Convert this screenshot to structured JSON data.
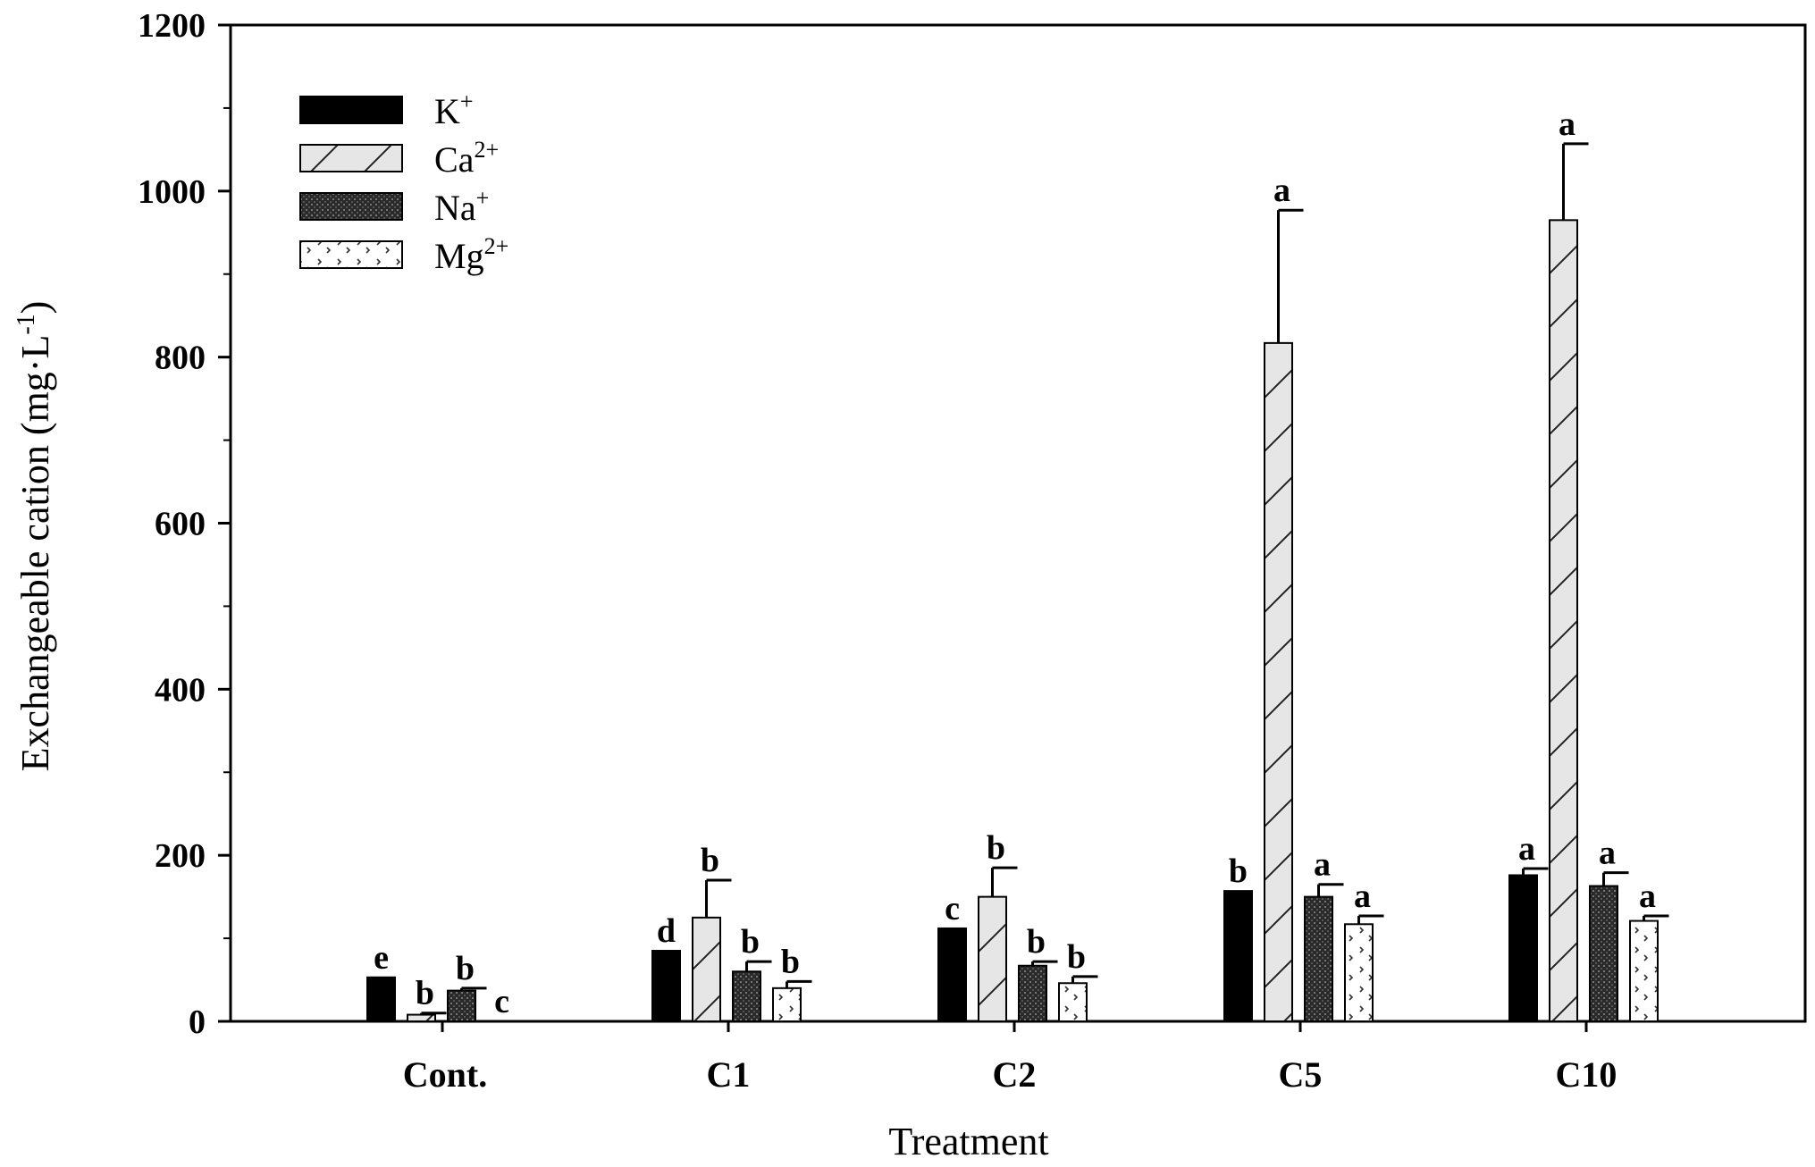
{
  "chart_data": {
    "type": "bar",
    "xlabel": "Treatment",
    "ylabel": "Exchangeable cation (mg·L",
    "ylabel_sup": "-1",
    "ylabel_tail": ")",
    "ylim": [
      0,
      1200
    ],
    "yticks": [
      0,
      200,
      400,
      600,
      800,
      1000,
      1200
    ],
    "categories": [
      "Cont.",
      "C1",
      "C2",
      "C5",
      "C10"
    ],
    "series": [
      {
        "name": "K",
        "sup": "+",
        "pattern": "solid",
        "values": [
          53,
          85,
          112,
          157,
          176
        ],
        "errors": [
          0,
          0,
          0,
          0,
          8
        ],
        "letters": [
          "e",
          "d",
          "c",
          "b",
          "a"
        ]
      },
      {
        "name": "Ca",
        "sup": "2+",
        "pattern": "hatch",
        "values": [
          8,
          125,
          150,
          817,
          965
        ],
        "errors": [
          2,
          45,
          35,
          160,
          92
        ],
        "letters": [
          "b",
          "b",
          "b",
          "a",
          "a"
        ]
      },
      {
        "name": "Na",
        "sup": "+",
        "pattern": "dark",
        "values": [
          37,
          60,
          67,
          150,
          163
        ],
        "errors": [
          3,
          12,
          5,
          15,
          16
        ],
        "letters": [
          "b",
          "b",
          "b",
          "a",
          "a"
        ]
      },
      {
        "name": "Mg",
        "sup": "2+",
        "pattern": "dots",
        "values": [
          0,
          40,
          46,
          117,
          121
        ],
        "errors": [
          0,
          8,
          8,
          10,
          6
        ],
        "letters": [
          "c",
          "b",
          "b",
          "a",
          "a"
        ]
      }
    ],
    "legend_position": "top-left",
    "grid": false
  }
}
